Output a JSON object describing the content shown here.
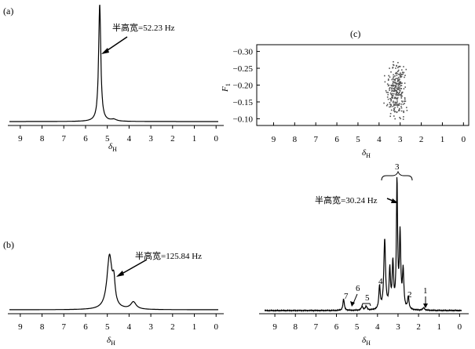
{
  "chart_data": [
    {
      "type": "line",
      "panel_label": "(a)",
      "xlabel": "δ",
      "xlabel_sub": "H",
      "x_ticks": [
        9,
        8,
        7,
        6,
        5,
        4,
        3,
        2,
        1,
        0
      ],
      "xlim": [
        9.5,
        -0.1
      ],
      "reversed_x": true,
      "annotation": "半高宽=52.23 Hz",
      "peaks": [
        {
          "x": 5.35,
          "h": 1.0,
          "w": 0.06
        },
        {
          "x": 4.7,
          "h": 0.015,
          "w": 0.15
        }
      ]
    },
    {
      "type": "line",
      "panel_label": "(b)",
      "xlabel": "δ",
      "xlabel_sub": "H",
      "x_ticks": [
        9,
        8,
        7,
        6,
        5,
        4,
        3,
        2,
        1,
        0
      ],
      "xlim": [
        9.5,
        -0.1
      ],
      "reversed_x": true,
      "annotation": "半高宽=125.84 Hz",
      "peaks": [
        {
          "x": 4.9,
          "h": 0.88,
          "w": 0.14
        },
        {
          "x": 4.7,
          "h": 0.35,
          "w": 0.07
        },
        {
          "x": 3.8,
          "h": 0.12,
          "w": 0.15
        }
      ]
    },
    {
      "type": "scatter",
      "panel_label": "(c)",
      "xlabel": "δ",
      "xlabel_sub": "H",
      "ylabel": "F",
      "ylabel_sub": "1",
      "x_ticks": [
        9,
        8,
        7,
        6,
        5,
        4,
        3,
        2,
        1,
        0
      ],
      "xlim": [
        9.5,
        -0.1
      ],
      "reversed_x": true,
      "y_ticks": [
        -0.3,
        -0.25,
        -0.2,
        -0.15,
        -0.1
      ],
      "y_tick_labels": [
        "−0.30",
        "−0.25",
        "−0.20",
        "−0.15",
        "−0.10"
      ],
      "ylim": [
        -0.32,
        -0.08
      ],
      "cluster": {
        "x_range": [
          2.6,
          3.9
        ],
        "y_range": [
          -0.28,
          -0.09
        ]
      }
    },
    {
      "type": "line",
      "xlabel": "δ",
      "xlabel_sub": "H",
      "x_ticks": [
        9,
        8,
        7,
        6,
        5,
        4,
        3,
        2,
        1,
        0
      ],
      "xlim": [
        9.5,
        -0.1
      ],
      "reversed_x": true,
      "annotation": "半高宽=30.24 Hz",
      "peak_labels": [
        "1",
        "2",
        "3",
        "4",
        "5",
        "6",
        "7"
      ],
      "peaks": [
        {
          "x": 5.65,
          "h": 0.09,
          "w": 0.04
        },
        {
          "x": 4.75,
          "h": 0.03,
          "w": 0.05
        },
        {
          "x": 4.55,
          "h": 0.03,
          "w": 0.05
        },
        {
          "x": 3.9,
          "h": 0.18,
          "w": 0.04
        },
        {
          "x": 3.65,
          "h": 0.55,
          "w": 0.05
        },
        {
          "x": 3.4,
          "h": 0.3,
          "w": 0.04
        },
        {
          "x": 3.25,
          "h": 0.35,
          "w": 0.04
        },
        {
          "x": 3.05,
          "h": 1.0,
          "w": 0.035
        },
        {
          "x": 2.9,
          "h": 0.58,
          "w": 0.04
        },
        {
          "x": 2.75,
          "h": 0.3,
          "w": 0.04
        },
        {
          "x": 2.5,
          "h": 0.1,
          "w": 0.04
        },
        {
          "x": 1.75,
          "h": 0.02,
          "w": 0.05
        }
      ]
    }
  ]
}
